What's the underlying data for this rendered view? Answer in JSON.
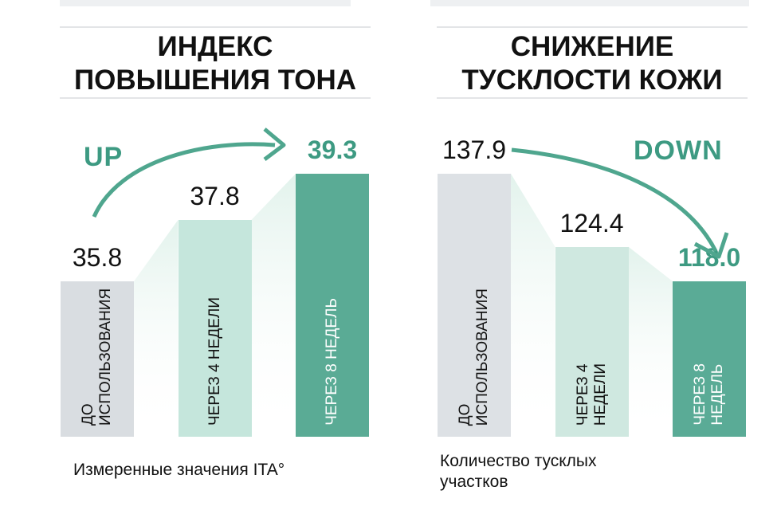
{
  "chart_data": [
    {
      "type": "bar",
      "title": "ИНДЕКС\nПОВЫШЕНИЯ ТОНА",
      "annotation": "UP",
      "caption": "Измеренные значения ITA°",
      "categories": [
        "ДО\nИСПОЛЬЗОВАНИЯ",
        "ЧЕРЕЗ 4 НЕДЕЛИ",
        "ЧЕРЕЗ 8 НЕДЕЛЬ"
      ],
      "values": [
        35.8,
        37.8,
        39.3
      ],
      "colors": [
        "#d9dde1",
        "#c5e6dc",
        "#5aab95"
      ]
    },
    {
      "type": "bar",
      "title": "СНИЖЕНИЕ\nТУСКЛОСТИ КОЖИ",
      "annotation": "DOWN",
      "caption": "Количество тусклых\nучастков",
      "categories": [
        "ДО\nИСПОЛЬЗОВАНИЯ",
        "ЧЕРЕЗ 4\nНЕДЕЛИ",
        "ЧЕРЕЗ 8\nНЕДЕЛЬ"
      ],
      "values": [
        137.9,
        124.4,
        118
      ],
      "value_labels": [
        "137.9",
        "124.4",
        "118.0"
      ],
      "colors": [
        "#dde1e5",
        "#cfe8e0",
        "#5aab96"
      ]
    }
  ]
}
